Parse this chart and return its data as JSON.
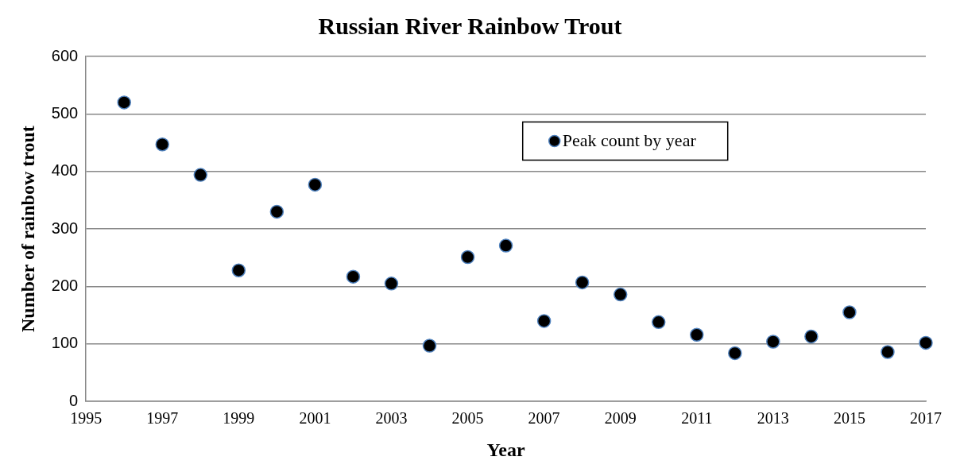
{
  "chart_data": {
    "type": "scatter",
    "title": "Russian River Rainbow Trout",
    "xlabel": "Year",
    "ylabel": "Number of rainbow trout",
    "x": [
      1996,
      1997,
      1998,
      1999,
      2000,
      2001,
      2002,
      2003,
      2004,
      2005,
      2006,
      2007,
      2008,
      2009,
      2010,
      2011,
      2012,
      2013,
      2014,
      2015,
      2016,
      2017
    ],
    "series": [
      {
        "name": "Peak count by year",
        "color": "#000000",
        "values": [
          520,
          447,
          394,
          228,
          330,
          377,
          217,
          205,
          97,
          251,
          271,
          140,
          207,
          186,
          138,
          116,
          84,
          104,
          113,
          155,
          86,
          102
        ]
      }
    ],
    "xlim": [
      1995,
      2017
    ],
    "xticks": [
      1995,
      1997,
      1999,
      2001,
      2003,
      2005,
      2007,
      2009,
      2011,
      2013,
      2015,
      2017
    ],
    "ylim": [
      0,
      600
    ],
    "yticks": [
      0,
      100,
      200,
      300,
      400,
      500,
      600
    ],
    "grid": "y",
    "legend": "top right",
    "marker": "circle"
  }
}
